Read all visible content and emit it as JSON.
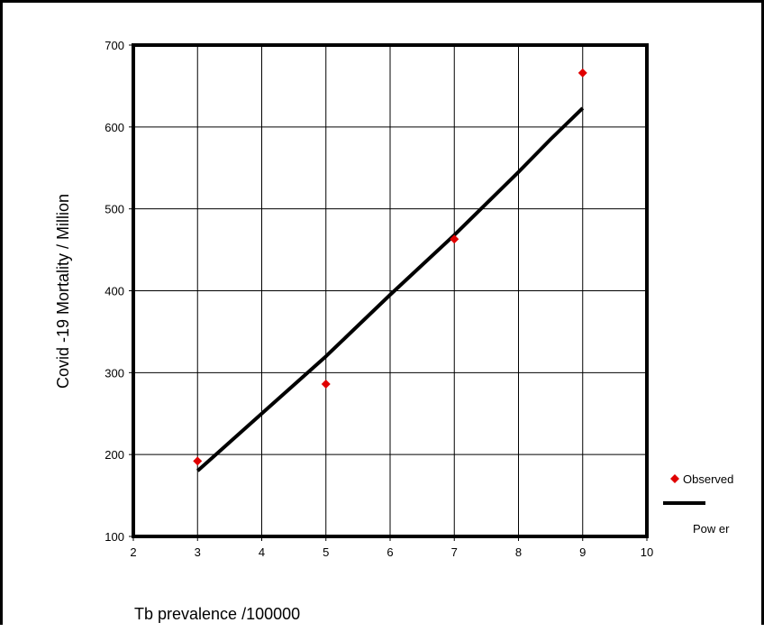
{
  "chart_data": {
    "type": "scatter",
    "title": "",
    "xlabel": "Tb prevalence /100000",
    "ylabel": "Covid -19 Mortality / Million",
    "xlim": [
      2,
      10
    ],
    "ylim": [
      100,
      700
    ],
    "xticks": [
      "2",
      "3",
      "4",
      "5",
      "6",
      "7",
      "8",
      "9",
      "10"
    ],
    "yticks": [
      "100",
      "200",
      "300",
      "400",
      "500",
      "600",
      "700"
    ],
    "grid": true,
    "legend_position": "right",
    "series": [
      {
        "name": "Observed",
        "kind": "scatter",
        "marker": "diamond",
        "color": "#e00000",
        "points": [
          [
            3,
            192
          ],
          [
            5,
            286
          ],
          [
            7,
            463
          ],
          [
            9,
            666
          ]
        ]
      },
      {
        "name": "Pow er",
        "kind": "line",
        "color": "#000000",
        "points": [
          [
            3,
            180
          ],
          [
            4,
            250
          ],
          [
            5,
            320
          ],
          [
            6,
            395
          ],
          [
            7,
            468
          ],
          [
            8,
            545
          ],
          [
            8.5,
            585
          ],
          [
            9,
            623
          ]
        ]
      }
    ]
  }
}
